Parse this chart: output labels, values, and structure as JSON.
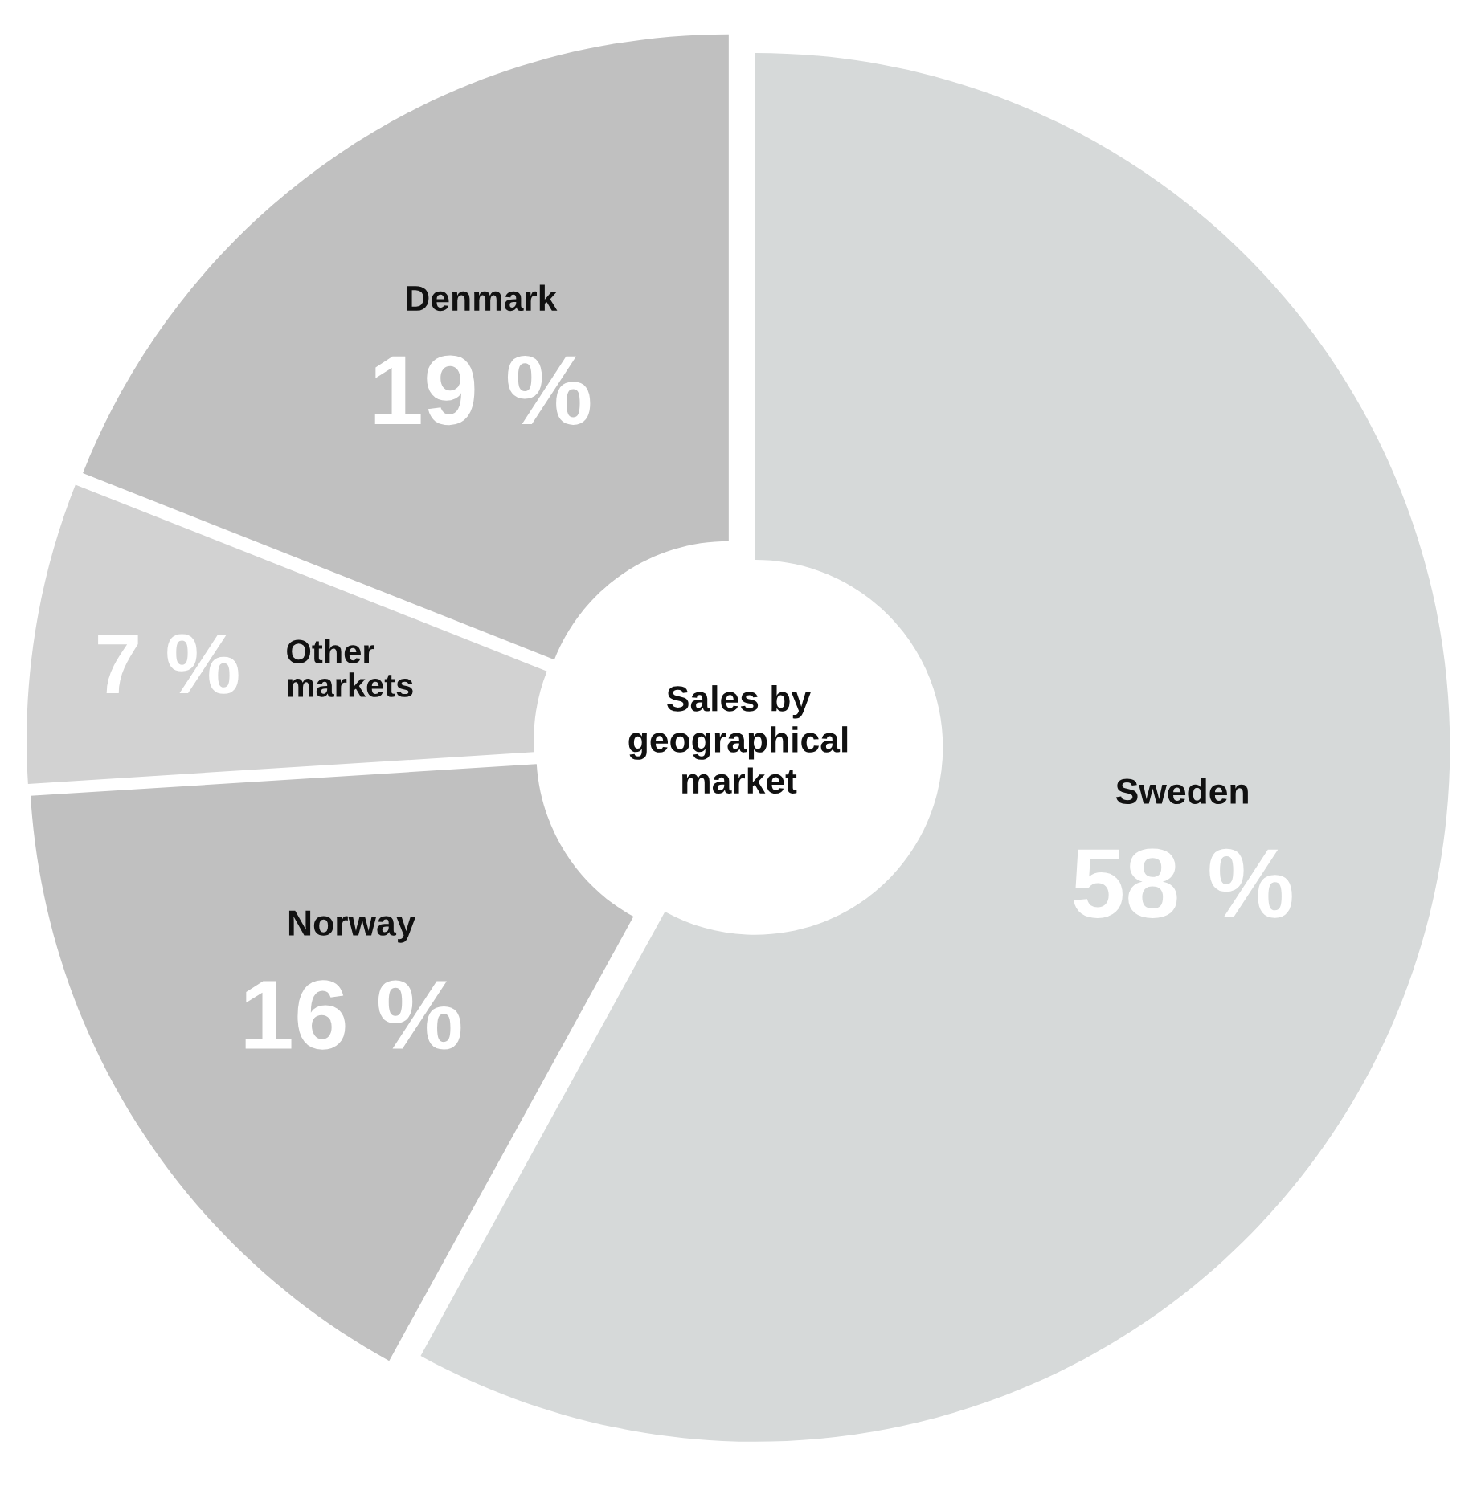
{
  "chart_data": {
    "type": "donut",
    "title": "Sales by geographical market",
    "categories": [
      "Sweden",
      "Norway",
      "Other markets",
      "Denmark"
    ],
    "values": [
      58,
      16,
      7,
      19
    ],
    "value_labels": [
      "58 %",
      "16 %",
      "7 %",
      "19 %"
    ],
    "colors": [
      "#d6d9d9",
      "#c0c0c0",
      "#d2d2d2",
      "#c0c0c0"
    ],
    "legend": false
  }
}
